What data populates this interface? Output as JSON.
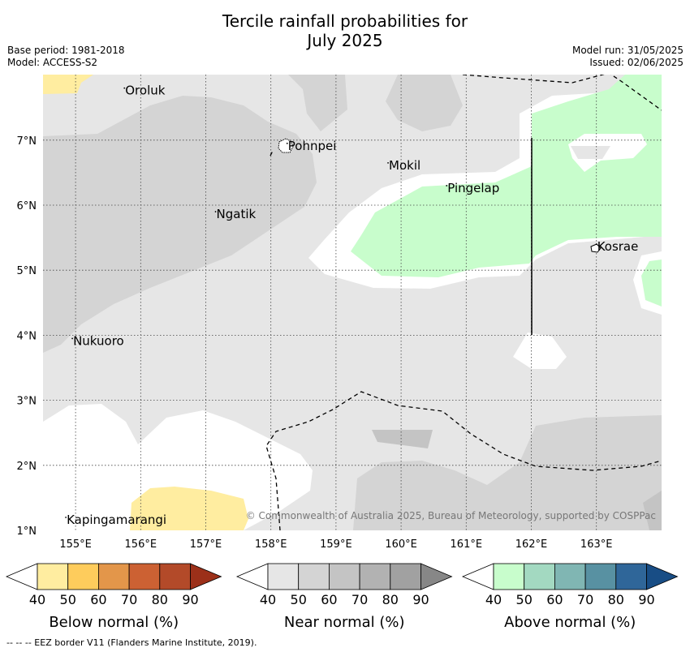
{
  "title_line1": "Tercile rainfall probabilities for",
  "title_line2": "July 2025",
  "meta_left": [
    "Base period: 1981-2018",
    "Model: ACCESS-S2"
  ],
  "meta_right": [
    "Model run: 31/05/2025",
    "Issued: 02/06/2025"
  ],
  "x_ticks": [
    "155°E",
    "156°E",
    "157°E",
    "158°E",
    "159°E",
    "160°E",
    "161°E",
    "162°E",
    "163°E"
  ],
  "y_ticks": [
    "7°N",
    "6°N",
    "5°N",
    "4°N",
    "3°N",
    "2°N",
    "1°N"
  ],
  "places": [
    {
      "name": "Oroluk",
      "lon": 155.75,
      "lat": 7.7
    },
    {
      "name": "Pohnpei",
      "lon": 158.25,
      "lat": 6.85
    },
    {
      "name": "Mokil",
      "lon": 159.8,
      "lat": 6.55
    },
    {
      "name": "Pingelap",
      "lon": 160.7,
      "lat": 6.2
    },
    {
      "name": "Ngatik",
      "lon": 157.15,
      "lat": 5.8
    },
    {
      "name": "Kosrae",
      "lon": 163.0,
      "lat": 5.3
    },
    {
      "name": "Nukuoro",
      "lon": 154.95,
      "lat": 3.85
    },
    {
      "name": "Kapingamarangi",
      "lon": 154.85,
      "lat": 1.1
    }
  ],
  "copyright": "© Commonwealth of Australia 2025, Bureau of Meteorology, supported by COSPPac",
  "colorbars": [
    {
      "label": "Below normal (%)",
      "colors": [
        "#ffffff",
        "#ffeda0",
        "#fecc5c",
        "#e3964a",
        "#cc6133",
        "#b34a29",
        "#9c3019"
      ]
    },
    {
      "label": "Near normal (%)",
      "colors": [
        "#ffffff",
        "#e6e6e6",
        "#d4d4d4",
        "#c4c4c4",
        "#b2b2b2",
        "#a1a1a1",
        "#878787"
      ]
    },
    {
      "label": "Above normal (%)",
      "colors": [
        "#ffffff",
        "#c8fdcc",
        "#a3d9c1",
        "#80b6b3",
        "#5891a2",
        "#2f6699",
        "#184d85"
      ]
    }
  ],
  "colorbar_ticks": [
    "40",
    "50",
    "60",
    "70",
    "80",
    "90"
  ],
  "footer": "--  --  -- EEZ border V11 (Flanders Marine Institute, 2019)."
}
